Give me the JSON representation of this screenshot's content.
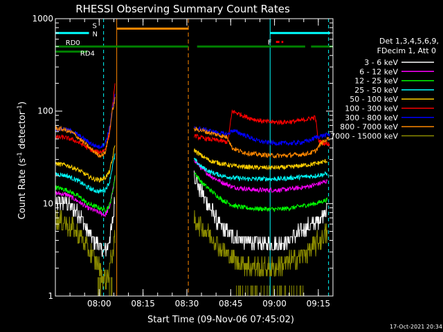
{
  "chart_data": {
    "type": "line",
    "title": "RHESSI Observing Summary Count Rates",
    "xlabel": "Start Time (09-Nov-06 07:45:02)",
    "ylabel_main": "Count Rate (s",
    "ylabel_sup1": "-1",
    "ylabel_mid": " detector",
    "ylabel_sup2": "-1",
    "ylabel_end": ")",
    "y_scale": "log",
    "ylim": [
      1,
      1000
    ],
    "xlim_minutes_after_0745": [
      0,
      95
    ],
    "y_ticks": [
      "1",
      "10",
      "100",
      "1000"
    ],
    "x_ticks": [
      {
        "label": "08:00",
        "minute": 15
      },
      {
        "label": "08:15",
        "minute": 30
      },
      {
        "label": "08:30",
        "minute": 45
      },
      {
        "label": "08:45",
        "minute": 60
      },
      {
        "label": "09:00",
        "minute": 75
      },
      {
        "label": "09:15",
        "minute": 90
      }
    ],
    "legend_header": [
      "Det 1,3,4,5,6,9,",
      "FDecim 1, Att 0"
    ],
    "legend_placement": "right",
    "series": [
      {
        "name": "3 - 6 keV",
        "color": "#ffffff",
        "seg1": [
          [
            0,
            10
          ],
          [
            3,
            10.5
          ],
          [
            6,
            9
          ],
          [
            9,
            7
          ],
          [
            11,
            5
          ],
          [
            13,
            4
          ],
          [
            15,
            3.5
          ],
          [
            16.5,
            3
          ],
          [
            18,
            3.5
          ],
          [
            19.5,
            6
          ],
          [
            20.5,
            12
          ]
        ],
        "seg2": [
          [
            47.5,
            22
          ],
          [
            49,
            15
          ],
          [
            52,
            10
          ],
          [
            56,
            6
          ],
          [
            60,
            4.5
          ],
          [
            64,
            4
          ],
          [
            68,
            3.8
          ],
          [
            72,
            3.6
          ],
          [
            76,
            3.6
          ],
          [
            80,
            4
          ],
          [
            84,
            5
          ],
          [
            88,
            6
          ],
          [
            90,
            6.5
          ],
          [
            93,
            9
          ]
        ]
      },
      {
        "name": "6 - 12 keV",
        "color": "#ff00ff",
        "seg1": [
          [
            0,
            13
          ],
          [
            4,
            12.5
          ],
          [
            8,
            10.5
          ],
          [
            11,
            9
          ],
          [
            13,
            8.5
          ],
          [
            15,
            8
          ],
          [
            17,
            7.5
          ],
          [
            18.5,
            9
          ],
          [
            19.5,
            13
          ],
          [
            20.5,
            20
          ]
        ],
        "seg2": [
          [
            47.5,
            30
          ],
          [
            50,
            24
          ],
          [
            53,
            20
          ],
          [
            57,
            17
          ],
          [
            61,
            15
          ],
          [
            65,
            14.5
          ],
          [
            69,
            14
          ],
          [
            73,
            14
          ],
          [
            77,
            14
          ],
          [
            81,
            14.5
          ],
          [
            85,
            15
          ],
          [
            89,
            16
          ],
          [
            93,
            17.5
          ]
        ]
      },
      {
        "name": "12 - 25 keV",
        "color": "#00ff00",
        "seg1": [
          [
            0,
            15
          ],
          [
            4,
            14
          ],
          [
            8,
            12
          ],
          [
            11,
            10
          ],
          [
            13,
            9.5
          ],
          [
            15,
            9
          ],
          [
            17,
            8.5
          ],
          [
            18.5,
            9.5
          ],
          [
            19.5,
            13
          ],
          [
            20.5,
            20
          ]
        ],
        "seg2": [
          [
            47.5,
            22
          ],
          [
            50,
            17
          ],
          [
            53,
            14
          ],
          [
            57,
            11
          ],
          [
            61,
            9.5
          ],
          [
            65,
            9
          ],
          [
            69,
            8.8
          ],
          [
            73,
            8.7
          ],
          [
            77,
            8.7
          ],
          [
            81,
            9
          ],
          [
            85,
            9.5
          ],
          [
            89,
            10
          ],
          [
            93,
            11
          ]
        ]
      },
      {
        "name": "25 - 50 keV",
        "color": "#00ffff",
        "seg1": [
          [
            0,
            21
          ],
          [
            4,
            20
          ],
          [
            8,
            17.5
          ],
          [
            11,
            15
          ],
          [
            13,
            14
          ],
          [
            15,
            13.5
          ],
          [
            17,
            14
          ],
          [
            18.5,
            17
          ],
          [
            19.5,
            25
          ],
          [
            20.5,
            35
          ]
        ],
        "seg2": [
          [
            47.5,
            30
          ],
          [
            50,
            25
          ],
          [
            53,
            22
          ],
          [
            57,
            20
          ],
          [
            61,
            19
          ],
          [
            65,
            18.5
          ],
          [
            69,
            18.5
          ],
          [
            73,
            18.5
          ],
          [
            77,
            18.5
          ],
          [
            81,
            19
          ],
          [
            85,
            19.5
          ],
          [
            89,
            20
          ],
          [
            93,
            21
          ]
        ]
      },
      {
        "name": "50 - 100 keV",
        "color": "#ffd000",
        "seg1": [
          [
            0,
            27
          ],
          [
            4,
            26
          ],
          [
            8,
            23
          ],
          [
            11,
            20
          ],
          [
            13,
            18.5
          ],
          [
            15,
            18
          ],
          [
            17,
            19
          ],
          [
            18.5,
            22
          ],
          [
            19.5,
            30
          ],
          [
            20.5,
            45
          ]
        ],
        "seg2": [
          [
            47.5,
            38
          ],
          [
            50,
            33
          ],
          [
            53,
            29
          ],
          [
            57,
            27
          ],
          [
            61,
            25.5
          ],
          [
            65,
            25
          ],
          [
            69,
            24.5
          ],
          [
            73,
            24.5
          ],
          [
            77,
            24.5
          ],
          [
            81,
            25
          ],
          [
            85,
            26
          ],
          [
            89,
            27
          ],
          [
            93,
            29
          ]
        ]
      },
      {
        "name": "100 - 300 keV",
        "color": "#ff0000",
        "seg1": [
          [
            0,
            52
          ],
          [
            3,
            52
          ],
          [
            6,
            49
          ],
          [
            9,
            44
          ],
          [
            11,
            40
          ],
          [
            13,
            37
          ],
          [
            15,
            36
          ],
          [
            17,
            38
          ],
          [
            18.5,
            55
          ],
          [
            19.5,
            110
          ],
          [
            20.5,
            200
          ]
        ],
        "seg2": [
          [
            47.5,
            55
          ],
          [
            49,
            52
          ],
          [
            52,
            50
          ],
          [
            56,
            48
          ],
          [
            59,
            46
          ],
          [
            60.5,
            100
          ],
          [
            63,
            93
          ],
          [
            66,
            85
          ],
          [
            69,
            80
          ],
          [
            72,
            77
          ],
          [
            75,
            76
          ],
          [
            78,
            76
          ],
          [
            81,
            77
          ],
          [
            84,
            79
          ],
          [
            87,
            83
          ],
          [
            89,
            86
          ],
          [
            90,
            48
          ],
          [
            92,
            45
          ],
          [
            94,
            44
          ]
        ]
      },
      {
        "name": "300 - 800 keV",
        "color": "#0000ff",
        "seg1": [
          [
            0,
            64
          ],
          [
            3,
            64
          ],
          [
            6,
            60
          ],
          [
            9,
            52
          ],
          [
            11,
            47
          ],
          [
            13,
            43
          ],
          [
            15,
            41
          ],
          [
            17,
            44
          ],
          [
            18.5,
            65
          ],
          [
            19.5,
            105
          ],
          [
            20.5,
            155
          ]
        ],
        "seg2": [
          [
            47.5,
            65
          ],
          [
            50,
            64
          ],
          [
            53,
            61
          ],
          [
            56,
            58
          ],
          [
            59,
            56
          ],
          [
            60.5,
            62
          ],
          [
            63,
            58
          ],
          [
            66,
            53
          ],
          [
            69,
            48
          ],
          [
            72,
            46
          ],
          [
            75,
            45
          ],
          [
            78,
            45
          ],
          [
            81,
            45
          ],
          [
            84,
            46
          ],
          [
            87,
            48
          ],
          [
            89,
            52
          ],
          [
            91,
            54
          ],
          [
            94,
            56
          ]
        ]
      },
      {
        "name": "800 - 7000 keV",
        "color": "#ff8800",
        "seg1": [
          [
            0,
            65
          ],
          [
            3,
            63
          ],
          [
            6,
            58
          ],
          [
            9,
            48
          ],
          [
            11,
            42
          ],
          [
            13,
            37
          ],
          [
            15,
            33
          ],
          [
            17,
            35
          ],
          [
            18.5,
            60
          ],
          [
            19.5,
            100
          ],
          [
            20.5,
            140
          ]
        ],
        "seg2": [
          [
            47.5,
            64
          ],
          [
            50,
            62
          ],
          [
            53,
            58
          ],
          [
            56,
            55
          ],
          [
            59,
            52
          ],
          [
            60.5,
            40
          ],
          [
            63,
            37
          ],
          [
            66,
            35
          ],
          [
            69,
            34
          ],
          [
            72,
            33.5
          ],
          [
            75,
            33
          ],
          [
            78,
            33
          ],
          [
            81,
            33.5
          ],
          [
            84,
            34
          ],
          [
            87,
            35
          ],
          [
            89,
            37
          ],
          [
            91,
            45
          ],
          [
            94,
            52
          ]
        ]
      },
      {
        "name": "7000 - 15000 keV",
        "color": "#8b8b00",
        "seg1": [
          [
            0,
            6.5
          ],
          [
            3,
            6.3
          ],
          [
            6,
            5.3
          ],
          [
            9,
            4.2
          ],
          [
            11,
            3.2
          ],
          [
            13,
            2.6
          ],
          [
            14.5,
            2.3
          ],
          [
            16,
            1.6
          ],
          [
            17.5,
            1.5
          ],
          [
            18.5,
            1.9
          ],
          [
            19.5,
            3
          ],
          [
            20.5,
            4
          ]
        ],
        "seg2": [
          [
            47.5,
            6.5
          ],
          [
            50,
            5.8
          ],
          [
            53,
            4.5
          ],
          [
            56,
            3.5
          ],
          [
            59,
            2.8
          ],
          [
            62,
            2.4
          ],
          [
            66,
            2.1
          ],
          [
            70,
            2
          ],
          [
            74,
            2
          ],
          [
            78,
            2.2
          ],
          [
            82,
            2.5
          ],
          [
            86,
            3
          ],
          [
            89,
            3.6
          ],
          [
            93,
            4.7
          ]
        ]
      }
    ],
    "markers": {
      "cyan_top_bar": {
        "label_s": "S",
        "label_n": "N",
        "segments": [
          [
            0,
            11.5
          ],
          [
            73.5,
            94
          ]
        ],
        "color": "#00ffff",
        "level": 700
      },
      "orange_bar": {
        "segments": [
          [
            21,
            45.5
          ]
        ],
        "color": "#ff8800",
        "level": 780
      },
      "flare_bar": {
        "label": "F",
        "segments": [
          [
            75.5,
            78
          ]
        ],
        "color": "#ff0000",
        "level": 560
      },
      "rd0_bar": {
        "label": "RD0",
        "segments": [
          [
            0,
            45.5
          ],
          [
            48.5,
            85.5
          ],
          [
            87.5,
            95
          ]
        ],
        "color": "#008000",
        "level": 500
      },
      "rd4_bar": {
        "label": "RD4",
        "segments": [
          [
            0,
            11
          ]
        ],
        "color": "#008000",
        "level": 440
      },
      "vlines_cyan_dashed": [
        16.5,
        93.5
      ],
      "vlines_cyan_solid": [
        0,
        73.5
      ],
      "vlines_orange_solid": [
        21
      ],
      "vlines_orange_dashed": [
        45.5
      ]
    },
    "grid": false
  },
  "timestamp": "17-Oct-2021 20:34"
}
